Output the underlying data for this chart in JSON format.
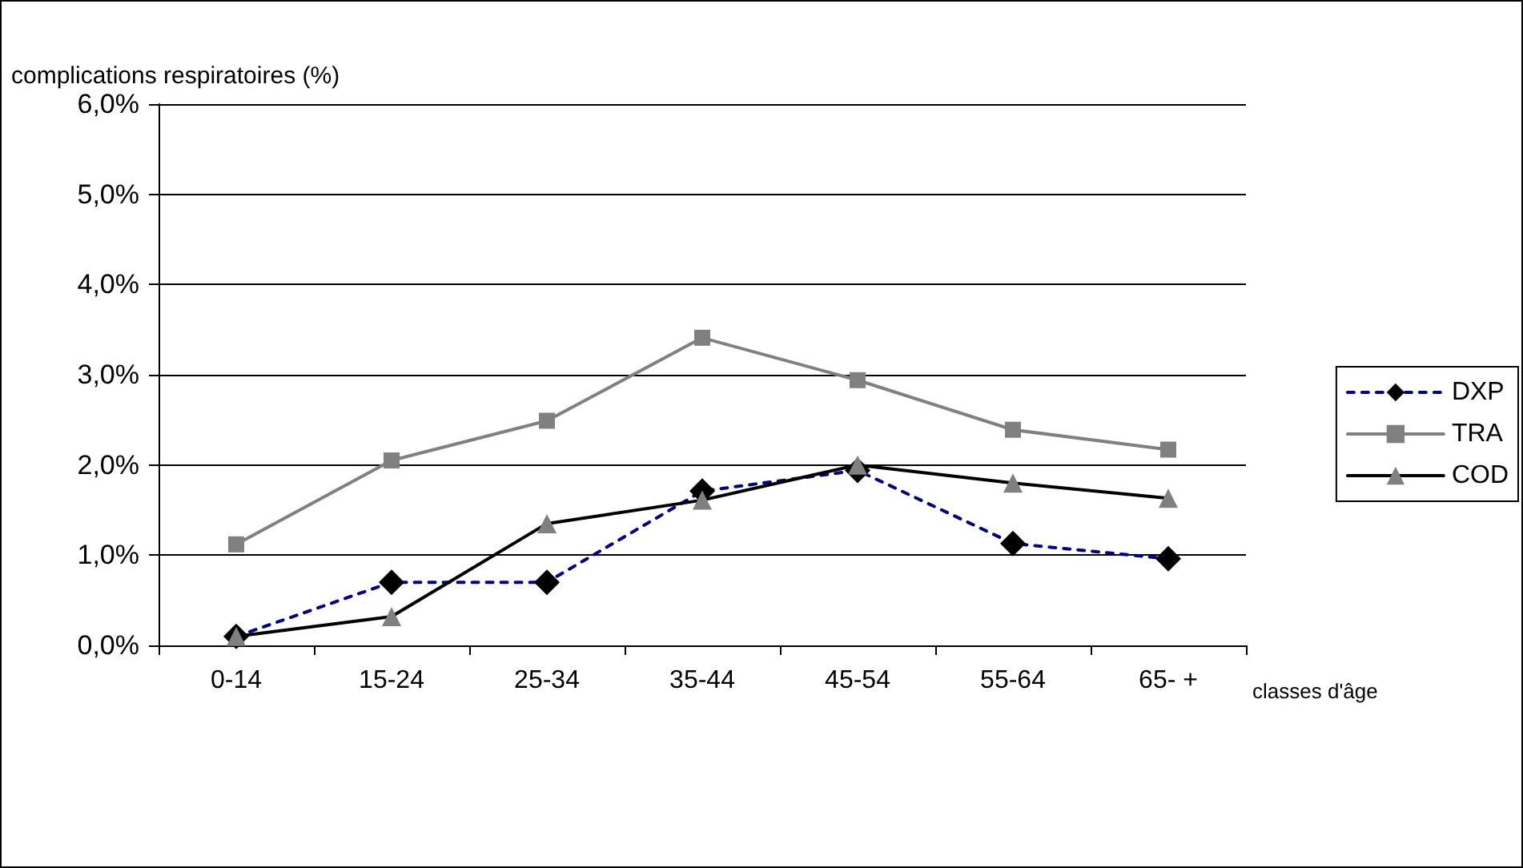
{
  "chart_data": {
    "type": "line",
    "ylabel": "complications respiratoires (%)",
    "xlabel": "classes d'âge",
    "categories": [
      "0-14",
      "15-24",
      "25-34",
      "35-44",
      "45-54",
      "55-64",
      "65- +"
    ],
    "series": [
      {
        "name": "DXP",
        "color": "#000080",
        "colors": [
          "#000000",
          "#000000",
          "#000000",
          "#000000",
          "#000000",
          "#000000",
          "#000000"
        ],
        "marker": "diamond",
        "line_style": "dashed",
        "values": [
          0.1,
          0.7,
          0.7,
          1.71,
          1.94,
          1.13,
          0.96
        ]
      },
      {
        "name": "TRA",
        "color": "#808080",
        "marker": "square",
        "line_style": "solid",
        "values": [
          1.12,
          2.05,
          2.49,
          3.41,
          2.94,
          2.39,
          2.17
        ]
      },
      {
        "name": "COD",
        "color": "#000000",
        "colors": [
          "#808080",
          "#808080",
          "#808080",
          "#808080",
          "#808080",
          "#808080",
          "#808080"
        ],
        "marker": "triangle",
        "line_style": "solid",
        "values": [
          0.1,
          0.32,
          1.35,
          1.61,
          2.0,
          1.8,
          1.63
        ]
      }
    ],
    "ylim": [
      0,
      6
    ],
    "yticks": [
      {
        "value": 0,
        "label": "0,0%"
      },
      {
        "value": 1,
        "label": "1,0%"
      },
      {
        "value": 2,
        "label": "2,0%"
      },
      {
        "value": 3,
        "label": "3,0%"
      },
      {
        "value": 4,
        "label": "4,0%"
      },
      {
        "value": 5,
        "label": "5,0%"
      },
      {
        "value": 6,
        "label": "6,0%"
      }
    ],
    "grid": "y",
    "legend": "right"
  }
}
